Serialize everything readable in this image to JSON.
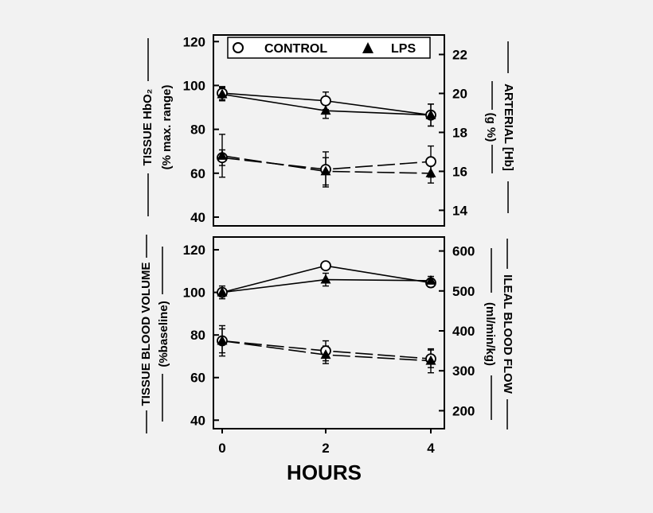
{
  "chart_data": [
    {
      "type": "line",
      "x": [
        0,
        2,
        4
      ],
      "xlabel": "",
      "xticks": [],
      "ylabel": "TISSUE HbO₂",
      "ylabel_sub": "(% max. range)",
      "ylim": [
        36,
        123
      ],
      "yticks": [
        40,
        60,
        80,
        100,
        120
      ],
      "y2label": "ARTERIAL [Hb]",
      "y2label_sub": "(g %)",
      "y2lim": [
        13.2,
        23
      ],
      "y2ticks": [
        14,
        16,
        18,
        20,
        22
      ],
      "legend": {
        "position": "top",
        "entries": [
          {
            "label": "CONTROL",
            "marker": "open-circle"
          },
          {
            "label": "LPS",
            "marker": "filled-triangle"
          }
        ]
      },
      "series": [
        {
          "group": "CONTROL",
          "axis": "left",
          "style": "solid",
          "marker": "open-circle",
          "values": [
            96.5,
            93,
            86.5
          ],
          "errors": [
            3,
            4,
            5
          ]
        },
        {
          "group": "LPS",
          "axis": "left",
          "style": "solid",
          "marker": "filled-triangle",
          "values": [
            96,
            88.5,
            86.5
          ],
          "errors": [
            3,
            3.5,
            5
          ]
        },
        {
          "group": "CONTROL",
          "axis": "right",
          "style": "dashed",
          "marker": "open-circle",
          "values": [
            16.7,
            16.1,
            16.5
          ],
          "errors": [
            0.4,
            0.9,
            0.8
          ]
        },
        {
          "group": "LPS",
          "axis": "right",
          "style": "dashed",
          "marker": "filled-triangle",
          "values": [
            16.8,
            16.0,
            15.9
          ],
          "errors": [
            1.1,
            0.7,
            0.5
          ]
        }
      ],
      "grid": false
    },
    {
      "type": "line",
      "x": [
        0,
        2,
        4
      ],
      "xlabel": "HOURS",
      "xticks": [
        "0",
        "2",
        "4"
      ],
      "ylabel": "TISSUE BLOOD VOLUME",
      "ylabel_sub": "(%baseline)",
      "ylim": [
        36,
        126
      ],
      "yticks": [
        40,
        60,
        80,
        100,
        120
      ],
      "y2label": "ILEAL BLOOD FLOW",
      "y2label_sub": "(ml/min/kg)",
      "y2lim": [
        155,
        635
      ],
      "y2ticks": [
        200,
        300,
        400,
        500,
        600
      ],
      "series": [
        {
          "group": "CONTROL",
          "axis": "left",
          "style": "solid",
          "marker": "open-circle",
          "values": [
            100,
            112.5,
            104.5
          ],
          "errors": [
            2,
            0,
            2
          ]
        },
        {
          "group": "LPS",
          "axis": "left",
          "style": "solid",
          "marker": "filled-triangle",
          "values": [
            100,
            106,
            105.5
          ],
          "errors": [
            3,
            3,
            2
          ]
        },
        {
          "group": "CONTROL",
          "axis": "right",
          "style": "dashed",
          "marker": "open-circle",
          "values": [
            375,
            350,
            330
          ],
          "errors": [
            30,
            25,
            22
          ]
        },
        {
          "group": "LPS",
          "axis": "right",
          "style": "dashed",
          "marker": "filled-triangle",
          "values": [
            375,
            340,
            325
          ],
          "errors": [
            38,
            22,
            30
          ]
        }
      ],
      "grid": false
    }
  ]
}
